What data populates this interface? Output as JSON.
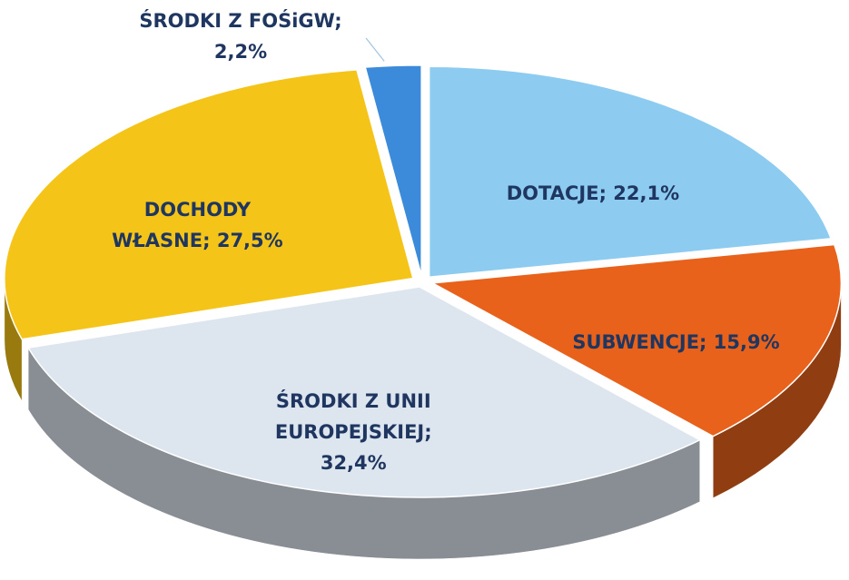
{
  "chart_data": {
    "type": "pie",
    "categories": [
      "DOTACJE",
      "SUBWENCJE",
      "ŚRODKI Z UNII EUROPEJSKIEJ",
      "DOCHODY WŁASNE",
      "ŚRODKI Z FOŚiGW"
    ],
    "values": [
      22.1,
      15.9,
      32.4,
      27.5,
      2.2
    ],
    "value_labels": [
      "22,1%",
      "15,9%",
      "32,4%",
      "27,5%",
      "2,2%"
    ],
    "label_separator": ";",
    "colors": [
      "#8dccf0",
      "#e8621c",
      "#dde5ee",
      "#f5c418",
      "#3c8ada"
    ]
  }
}
